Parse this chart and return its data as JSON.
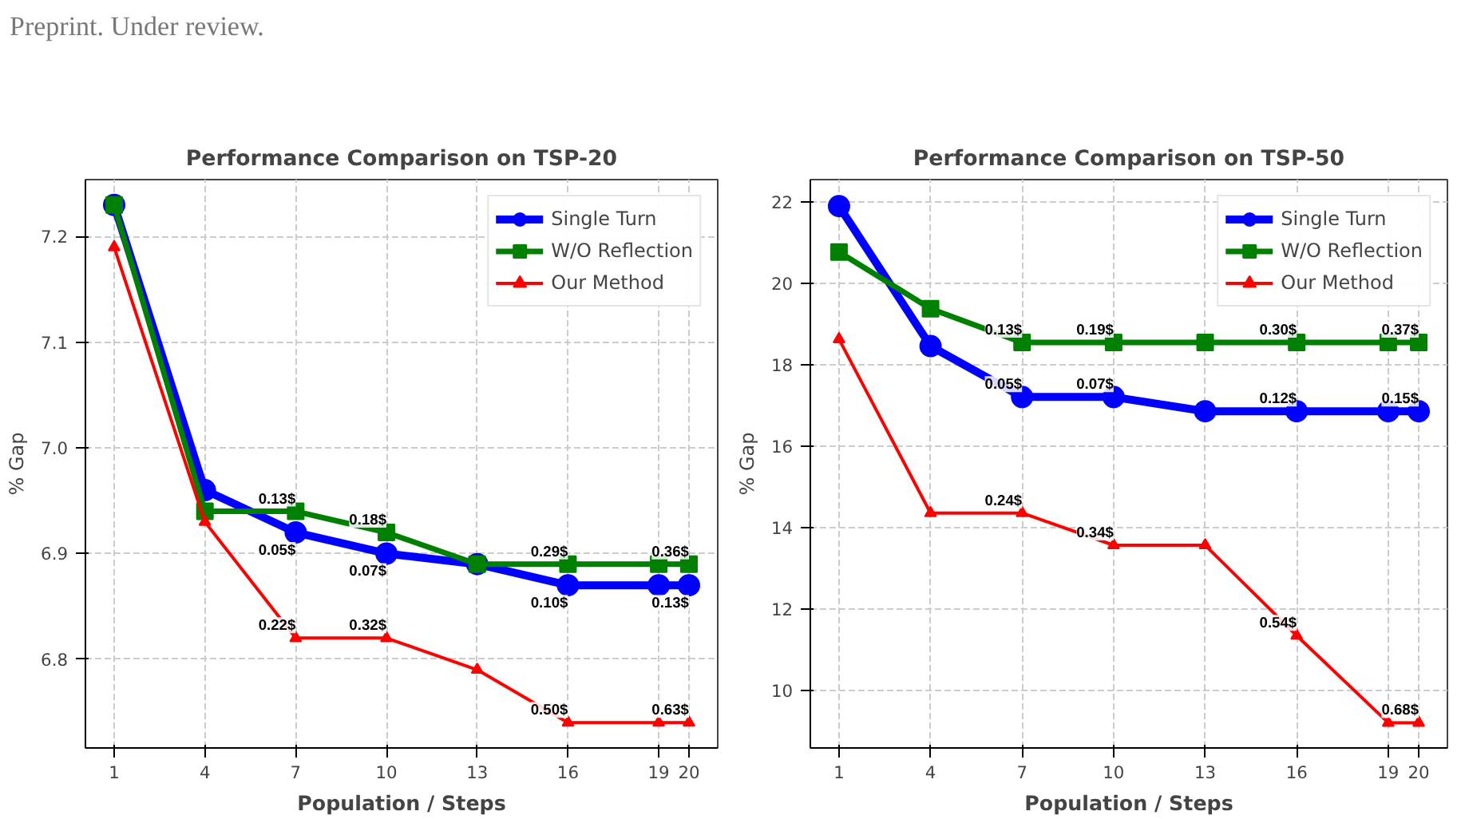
{
  "chart_data": [
    {
      "type": "line",
      "title": "Performance Comparison on TSP-20",
      "xlabel": "Population / Steps",
      "ylabel": "% Gap",
      "x": [
        1,
        4,
        7,
        10,
        13,
        16,
        19,
        20
      ],
      "series": [
        {
          "name": "Single Turn",
          "color": "#0000ff",
          "marker": "circle",
          "values": [
            7.23,
            6.96,
            6.92,
            6.9,
            6.89,
            6.87,
            6.87,
            6.87
          ]
        },
        {
          "name": "W/O Reflection",
          "color": "#008000",
          "marker": "square",
          "values": [
            7.23,
            6.94,
            6.94,
            6.92,
            6.89,
            6.89,
            6.89,
            6.89
          ]
        },
        {
          "name": "Our Method",
          "color": "#ff0000",
          "marker": "triangle",
          "values": [
            7.19,
            6.93,
            6.82,
            6.82,
            6.79,
            6.74,
            6.74,
            6.74
          ]
        }
      ],
      "xlim": [
        0.05,
        20.95
      ],
      "ylim": [
        6.716,
        7.254
      ],
      "xticks": [
        1,
        4,
        7,
        10,
        13,
        16,
        19,
        20
      ],
      "yticks": [
        6.8,
        6.9,
        {
          "value": 7.0,
          "label": "7.0"
        },
        7.1,
        7.2
      ],
      "grid": true,
      "legend": "top right",
      "line_style": "solid",
      "annotations": [
        "Preprint. Under review.",
        {
          "text": "0.13$",
          "x": 7,
          "y": 6.94
        },
        {
          "text": "0.18$",
          "x": 10,
          "y": 6.92
        },
        {
          "text": "0.29$",
          "x": 16,
          "y": 6.89
        },
        {
          "text": "0.36$",
          "x": 20,
          "y": 6.89
        },
        {
          "text": "0.05$",
          "x": 7,
          "y": 6.92
        },
        {
          "text": "0.07$",
          "x": 10,
          "y": 6.9
        },
        {
          "text": "0.10$",
          "x": 16,
          "y": 6.87
        },
        {
          "text": "0.13$",
          "x": 20,
          "y": 6.87
        },
        {
          "text": "0.22$",
          "x": 7,
          "y": 6.82
        },
        {
          "text": "0.32$",
          "x": 10,
          "y": 6.82
        },
        {
          "text": "0.50$",
          "x": 16,
          "y": 6.74
        },
        {
          "text": "0.63$",
          "x": 20,
          "y": 6.74
        }
      ]
    },
    {
      "type": "line",
      "title": "Performance Comparison on TSP-50",
      "xlabel": "Population / Steps",
      "ylabel": "% Gap",
      "x": [
        1,
        4,
        7,
        10,
        13,
        16,
        19,
        20
      ],
      "series": [
        {
          "name": "Single Turn",
          "color": "#0000ff",
          "marker": "circle",
          "values": [
            21.9,
            18.46,
            17.21,
            17.21,
            16.86,
            16.86,
            16.86,
            16.86
          ]
        },
        {
          "name": "W/O Reflection",
          "color": "#008000",
          "marker": "square",
          "values": [
            20.77,
            19.38,
            18.55,
            18.55,
            18.55,
            18.55,
            18.55,
            18.55
          ]
        },
        {
          "name": "Our Method",
          "color": "#ff0000",
          "marker": "triangle",
          "values": [
            18.63,
            14.36,
            14.36,
            13.57,
            13.57,
            11.35,
            9.21,
            9.21
          ]
        }
      ],
      "xlim": [
        0.06,
        20.94
      ],
      "ylim": [
        8.59,
        22.55
      ],
      "xticks": [
        1,
        4,
        7,
        10,
        13,
        16,
        19,
        20
      ],
      "yticks": [
        10,
        12,
        14,
        16,
        18,
        20,
        22
      ],
      "grid": true,
      "legend": "top right",
      "line_style": "solid",
      "annotations": [
        {
          "text": "0.13$",
          "x": 7,
          "y": 18.55
        },
        {
          "text": "0.19$",
          "x": 10,
          "y": 18.55
        },
        {
          "text": "0.30$",
          "x": 16,
          "y": 18.55
        },
        {
          "text": "0.37$",
          "x": 20,
          "y": 18.55
        },
        {
          "text": "0.05$",
          "x": 7,
          "y": 17.21
        },
        {
          "text": "0.07$",
          "x": 10,
          "y": 17.21
        },
        {
          "text": "0.12$",
          "x": 16,
          "y": 16.86
        },
        {
          "text": "0.15$",
          "x": 20,
          "y": 16.86
        },
        {
          "text": "0.24$",
          "x": 7,
          "y": 14.36
        },
        {
          "text": "0.34$",
          "x": 10,
          "y": 13.57
        },
        {
          "text": "0.54$",
          "x": 16,
          "y": 11.35
        },
        {
          "text": "0.68$",
          "x": 20,
          "y": 9.21
        }
      ]
    }
  ]
}
